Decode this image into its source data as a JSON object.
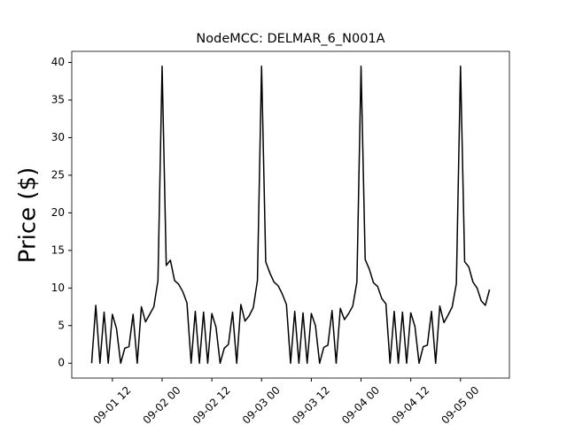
{
  "chart_data": {
    "type": "line",
    "title": "NodeMCC: DELMAR_6_N001A",
    "y_label": "Price ($)",
    "x": [
      "09-01 07:00",
      "09-01 08:00",
      "09-01 09:00",
      "09-01 10:00",
      "09-01 11:00",
      "09-01 12:00",
      "09-01 13:00",
      "09-01 14:00",
      "09-01 15:00",
      "09-01 16:00",
      "09-01 17:00",
      "09-01 18:00",
      "09-01 19:00",
      "09-01 20:00",
      "09-01 21:00",
      "09-01 22:00",
      "09-01 23:00",
      "09-02 00:00",
      "09-02 01:00",
      "09-02 02:00",
      "09-02 03:00",
      "09-02 04:00",
      "09-02 05:00",
      "09-02 06:00",
      "09-02 07:00",
      "09-02 08:00",
      "09-02 09:00",
      "09-02 10:00",
      "09-02 11:00",
      "09-02 12:00",
      "09-02 13:00",
      "09-02 14:00",
      "09-02 15:00",
      "09-02 16:00",
      "09-02 17:00",
      "09-02 18:00",
      "09-02 19:00",
      "09-02 20:00",
      "09-02 21:00",
      "09-02 22:00",
      "09-02 23:00",
      "09-03 00:00",
      "09-03 01:00",
      "09-03 02:00",
      "09-03 03:00",
      "09-03 04:00",
      "09-03 05:00",
      "09-03 06:00",
      "09-03 07:00",
      "09-03 08:00",
      "09-03 09:00",
      "09-03 10:00",
      "09-03 11:00",
      "09-03 12:00",
      "09-03 13:00",
      "09-03 14:00",
      "09-03 15:00",
      "09-03 16:00",
      "09-03 17:00",
      "09-03 18:00",
      "09-03 19:00",
      "09-03 20:00",
      "09-03 21:00",
      "09-03 22:00",
      "09-03 23:00",
      "09-04 00:00",
      "09-04 01:00",
      "09-04 02:00",
      "09-04 03:00",
      "09-04 04:00",
      "09-04 05:00",
      "09-04 06:00",
      "09-04 07:00",
      "09-04 08:00",
      "09-04 09:00",
      "09-04 10:00",
      "09-04 11:00",
      "09-04 12:00",
      "09-04 13:00",
      "09-04 14:00",
      "09-04 15:00",
      "09-04 16:00",
      "09-04 17:00",
      "09-04 18:00",
      "09-04 19:00",
      "09-04 20:00",
      "09-04 21:00",
      "09-04 22:00",
      "09-04 23:00",
      "09-05 00:00",
      "09-05 01:00",
      "09-05 02:00",
      "09-05 03:00",
      "09-05 04:00",
      "09-05 05:00",
      "09-05 06:00",
      "09-05 07:00"
    ],
    "series": [
      {
        "name": "Price",
        "color": "#000000",
        "values": [
          0,
          7.7,
          0,
          6.8,
          0,
          6.5,
          4.6,
          0,
          2,
          2.2,
          6.5,
          0,
          7.5,
          5.5,
          6.5,
          7.5,
          11,
          39.5,
          13,
          13.7,
          11,
          10.5,
          9.5,
          8,
          0,
          6.9,
          0,
          6.8,
          0,
          6.6,
          4.8,
          0,
          2,
          2.5,
          6.8,
          0,
          7.8,
          5.6,
          6.3,
          7.4,
          11,
          39.5,
          13.5,
          12,
          10.8,
          10.3,
          9.2,
          7.8,
          0,
          6.9,
          0,
          6.7,
          0,
          6.6,
          5,
          0,
          2.1,
          2.4,
          7,
          0,
          7.3,
          5.8,
          6.6,
          7.6,
          10.8,
          39.5,
          13.8,
          12.5,
          10.7,
          10.2,
          8.6,
          7.9,
          0,
          6.9,
          0,
          6.8,
          0,
          6.7,
          4.9,
          0,
          2.2,
          2.4,
          6.9,
          0,
          7.6,
          5.4,
          6.4,
          7.5,
          10.6,
          39.5,
          13.5,
          12.8,
          10.8,
          10,
          8.3,
          7.7,
          9.8
        ]
      }
    ],
    "xlim": [
      "09-01 02:12",
      "09-05 11:48"
    ],
    "xticks": [
      {
        "value": "09-01 12:00",
        "label": "09-01 12"
      },
      {
        "value": "09-02 00:00",
        "label": "09-02 00"
      },
      {
        "value": "09-02 12:00",
        "label": "09-02 12"
      },
      {
        "value": "09-03 00:00",
        "label": "09-03 00"
      },
      {
        "value": "09-03 12:00",
        "label": "09-03 12"
      },
      {
        "value": "09-04 00:00",
        "label": "09-04 00"
      },
      {
        "value": "09-04 12:00",
        "label": "09-04 12"
      },
      {
        "value": "09-05 00:00",
        "label": "09-05 00"
      }
    ],
    "ylim": [
      -1.975,
      41.475
    ],
    "yticks": [
      0,
      5,
      10,
      15,
      20,
      25,
      30,
      35,
      40
    ],
    "grid": false
  }
}
